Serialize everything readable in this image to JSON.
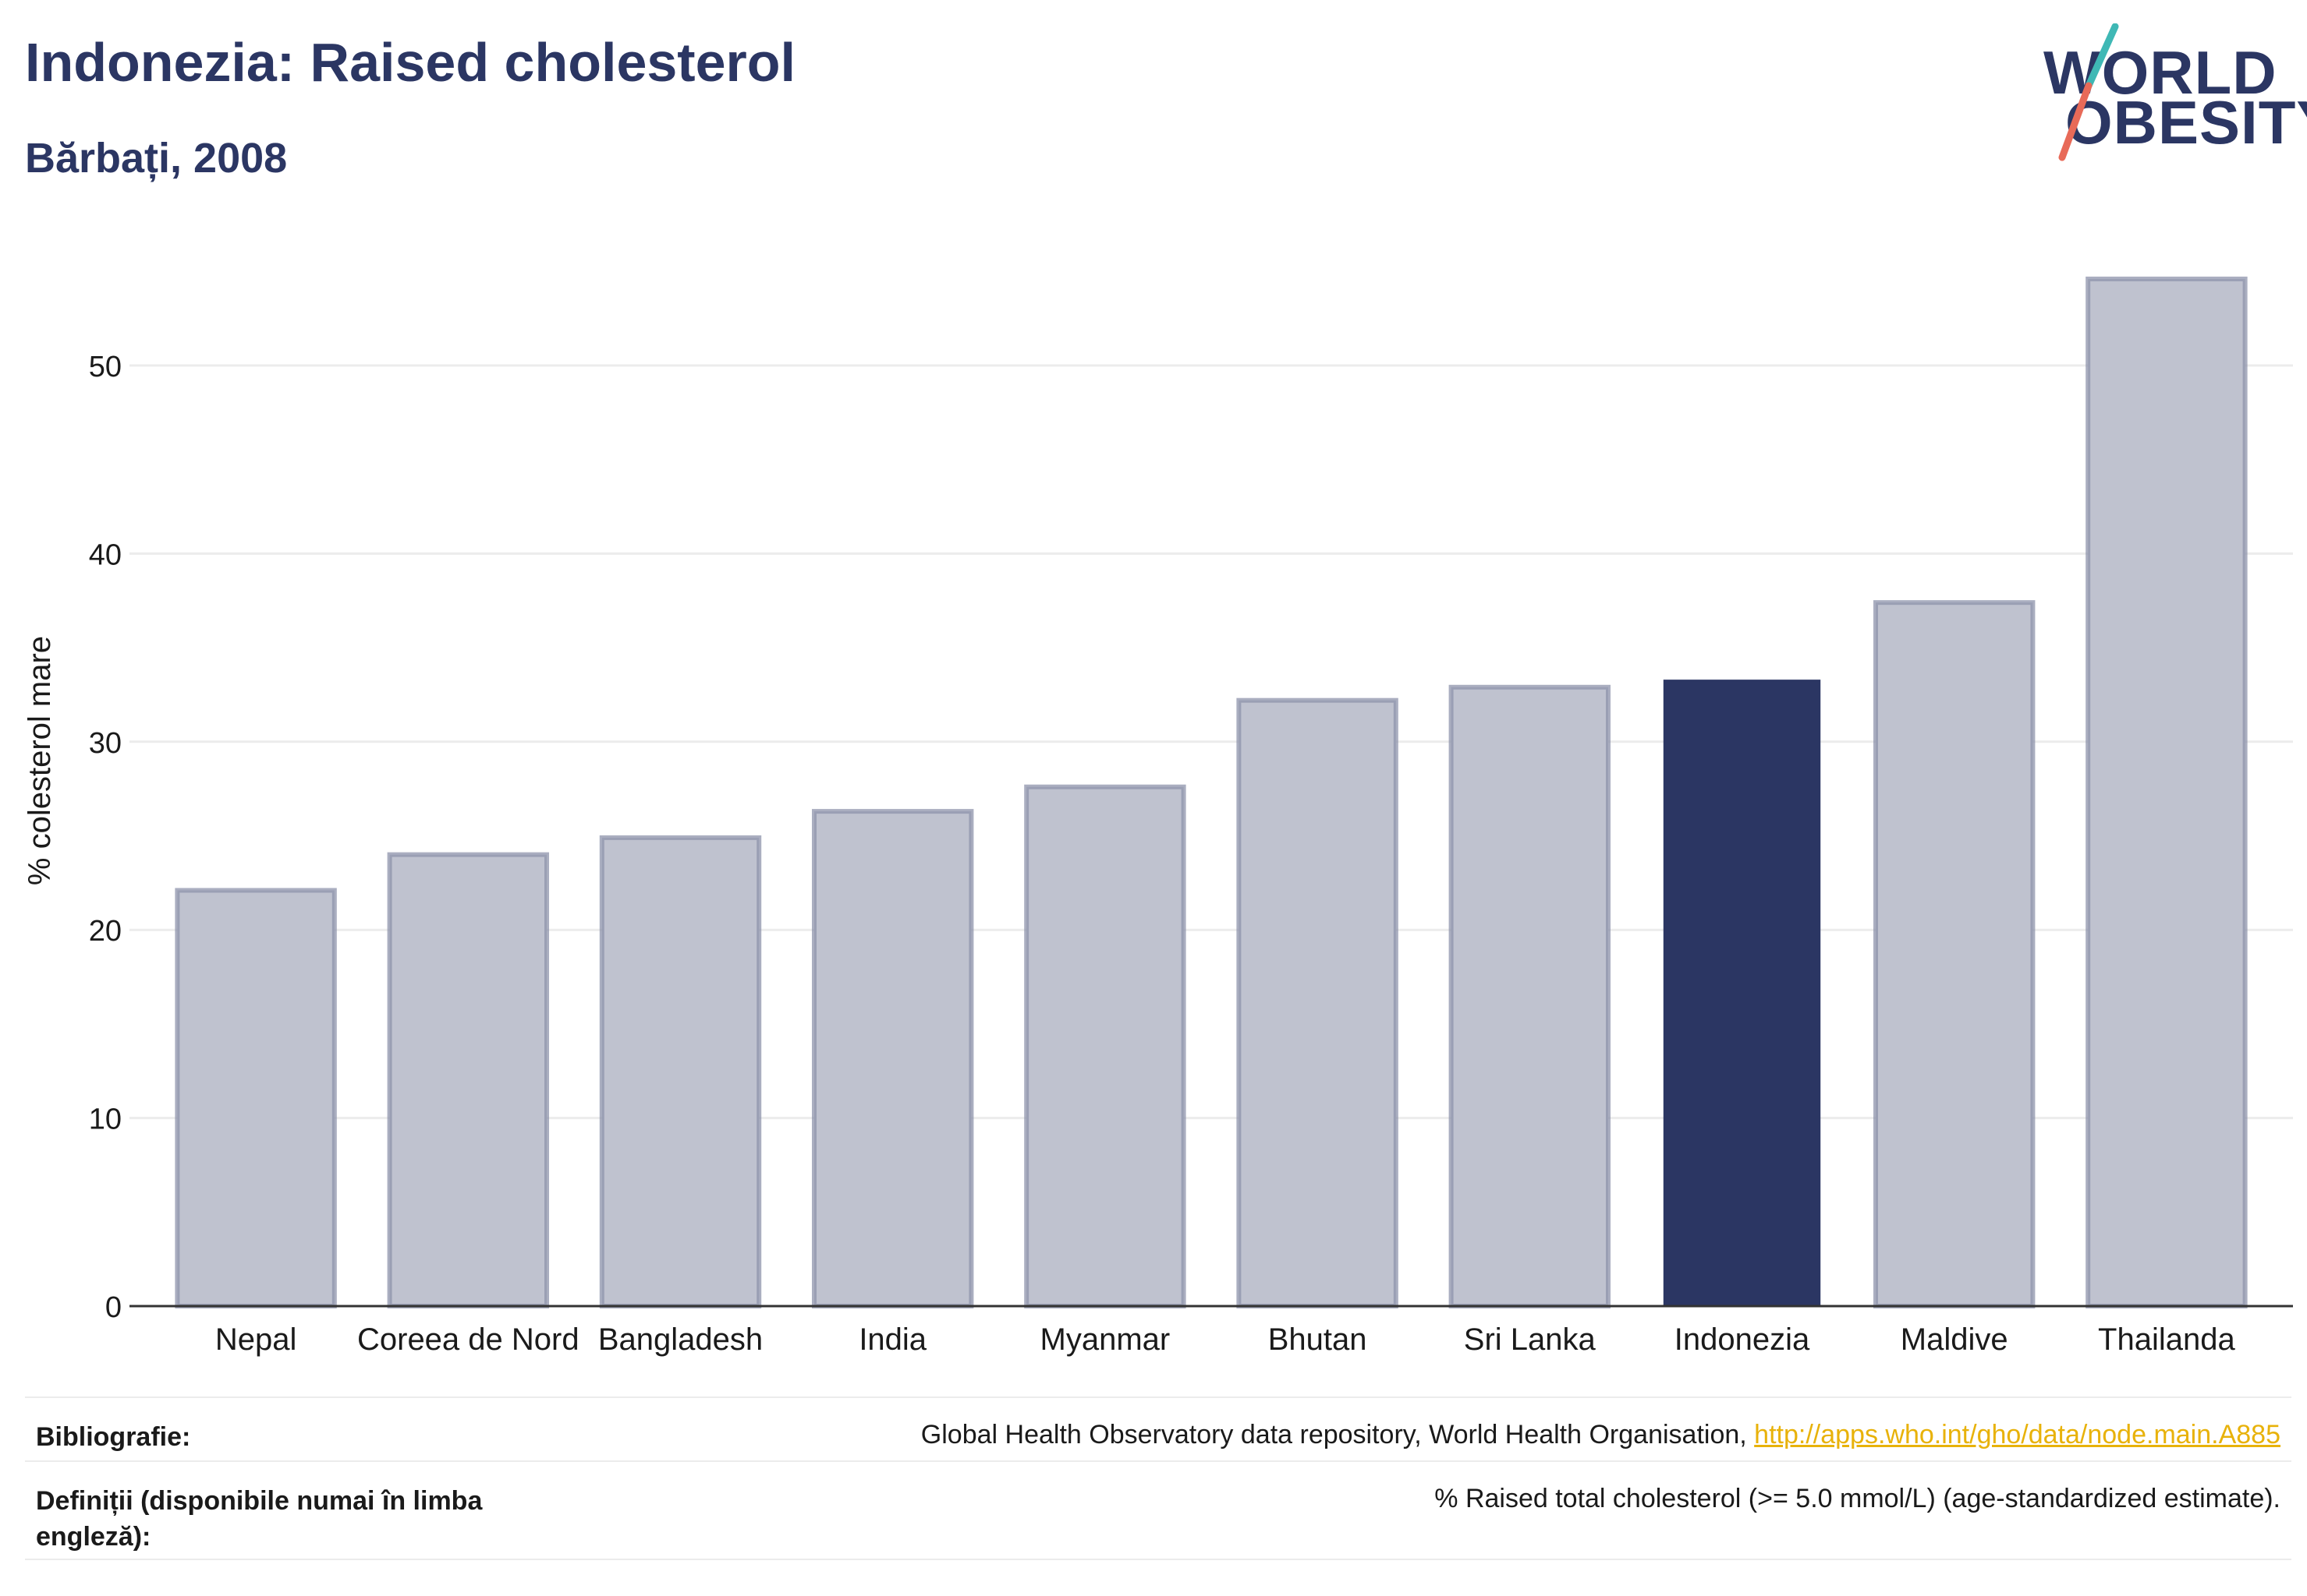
{
  "header": {
    "title": "Indonezia: Raised cholesterol",
    "subtitle": "Bărbați, 2008"
  },
  "logo": {
    "line1": "WORLD",
    "line2": "OBESITY",
    "slash_colors": [
      "#3fb8b5",
      "#e86a58"
    ]
  },
  "chart_data": {
    "type": "bar",
    "title": "Indonezia: Raised cholesterol",
    "subtitle": "Bărbați, 2008",
    "ylabel": "% colesterol mare",
    "xlabel": "",
    "ylim": [
      0,
      57
    ],
    "yticks": [
      0,
      10,
      20,
      30,
      40,
      50
    ],
    "grid": true,
    "legend": "none",
    "categories": [
      "Nepal",
      "Coreea de Nord",
      "Bangladesh",
      "India",
      "Myanmar",
      "Bhutan",
      "Sri Lanka",
      "Indonezia",
      "Maldive",
      "Thailanda"
    ],
    "values": [
      22.1,
      24.0,
      24.9,
      26.3,
      27.6,
      32.2,
      32.9,
      33.3,
      37.4,
      54.6
    ],
    "highlight": "Indonezia",
    "colors": {
      "bar": "#bfc2cf",
      "bar_border": "#8d93ab",
      "highlight": "#2b3663",
      "grid": "#ececec",
      "axis": "#333333"
    }
  },
  "footer": {
    "bibliography_label": "Bibliografie:",
    "bibliography_text": "Global Health Observatory data repository, World Health Organisation, ",
    "bibliography_link": "http://apps.who.int/gho/data/node.main.A885",
    "definitions_label": "Definiții (disponibile numai în limba engleză):",
    "definitions_text": "% Raised total cholesterol (>= 5.0 mmol/L) (age-standardized estimate)."
  }
}
